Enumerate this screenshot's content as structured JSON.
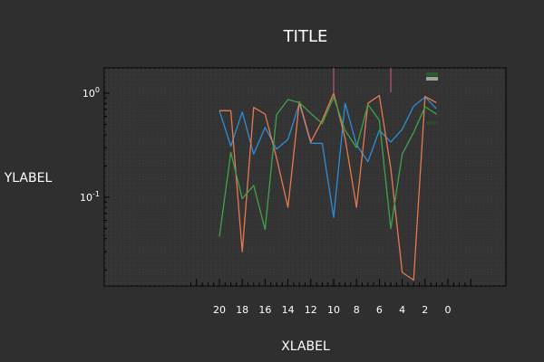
{
  "chart_data": {
    "type": "line",
    "title": "TITLE",
    "xlabel": "XLABEL",
    "ylabel": "YLABEL",
    "xlim": [
      28.5,
      -5
    ],
    "ylim": [
      0.012,
      1.7
    ],
    "xscale": "linear",
    "yscale": "log",
    "x_ticks": [
      20,
      18,
      16,
      14,
      12,
      10,
      8,
      6,
      4,
      2,
      0
    ],
    "y_ticks": [
      {
        "value": 1,
        "label": "10^0"
      },
      {
        "value": 0.1,
        "label": "10^-1"
      }
    ],
    "grid": true,
    "vlines": [
      {
        "x": 10,
        "color": "#e05a8a"
      },
      {
        "x": 5,
        "color": "#e05a8a"
      }
    ],
    "legend": {
      "position": "top-right",
      "swatches": [
        "#2d5a2d",
        "#9aa89a",
        "#2a4a2a"
      ]
    },
    "series": [
      {
        "color": "#2b8fd6",
        "x": [
          20,
          19,
          18,
          17,
          16,
          15,
          14,
          13,
          12,
          11,
          10,
          9,
          8,
          7,
          6,
          5,
          4,
          3,
          2,
          1
        ],
        "values": [
          0.68,
          0.31,
          0.66,
          0.26,
          0.47,
          0.29,
          0.36,
          0.8,
          0.33,
          0.33,
          0.064,
          0.8,
          0.32,
          0.22,
          0.44,
          0.34,
          0.45,
          0.75,
          0.92,
          0.71
        ]
      },
      {
        "color": "#e8784e",
        "x": [
          20,
          19,
          18,
          17,
          16,
          15,
          14,
          13,
          12,
          11,
          10,
          9,
          8,
          7,
          6,
          5,
          4,
          3,
          2,
          1
        ],
        "values": [
          0.68,
          0.68,
          0.03,
          0.73,
          0.63,
          0.24,
          0.08,
          0.83,
          0.34,
          0.55,
          1.0,
          0.37,
          0.08,
          0.8,
          0.95,
          0.19,
          0.019,
          0.016,
          0.93,
          0.81
        ]
      },
      {
        "color": "#3fa34d",
        "x": [
          20,
          19,
          18,
          17,
          16,
          15,
          14,
          13,
          12,
          11,
          10,
          9,
          8,
          7,
          6,
          5,
          4,
          3,
          2,
          1
        ],
        "values": [
          0.042,
          0.27,
          0.097,
          0.13,
          0.049,
          0.62,
          0.87,
          0.81,
          0.64,
          0.51,
          0.92,
          0.44,
          0.3,
          0.78,
          0.55,
          0.05,
          0.26,
          0.42,
          0.74,
          0.63
        ]
      }
    ]
  }
}
